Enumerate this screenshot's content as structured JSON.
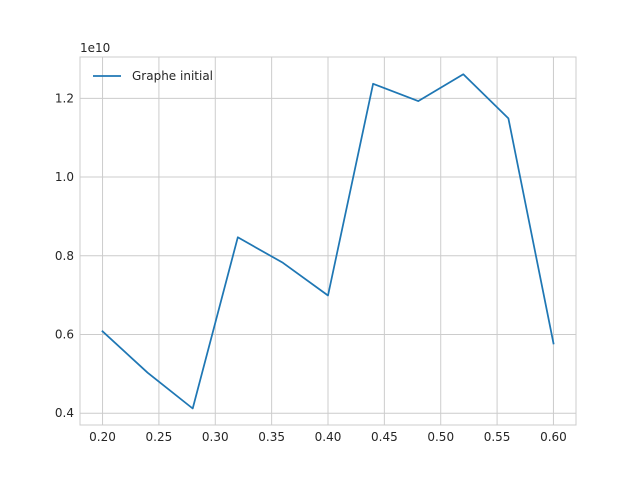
{
  "chart_data": {
    "type": "line",
    "title": "",
    "xlabel": "",
    "ylabel": "",
    "y_offset_label": "1e10",
    "xlim": [
      0.18,
      0.62
    ],
    "ylim": [
      0.37,
      1.305
    ],
    "grid": true,
    "legend_position": "top-left",
    "x_ticks": [
      0.2,
      0.25,
      0.3,
      0.35,
      0.4,
      0.45,
      0.5,
      0.55,
      0.6
    ],
    "x_tick_labels": [
      "0.20",
      "0.25",
      "0.30",
      "0.35",
      "0.40",
      "0.45",
      "0.50",
      "0.55",
      "0.60"
    ],
    "y_ticks": [
      0.4,
      0.6,
      0.8,
      1.0,
      1.2
    ],
    "y_tick_labels": [
      "0.4",
      "0.6",
      "0.8",
      "1.0",
      "1.2"
    ],
    "series": [
      {
        "name": "Graphe initial",
        "color": "#1f77b4",
        "x": [
          0.2,
          0.24,
          0.28,
          0.32,
          0.36,
          0.4,
          0.44,
          0.48,
          0.52,
          0.56,
          0.6
        ],
        "y": [
          0.608,
          0.503,
          0.412,
          0.847,
          0.782,
          0.699,
          1.237,
          1.193,
          1.261,
          1.149,
          0.577
        ]
      }
    ]
  }
}
